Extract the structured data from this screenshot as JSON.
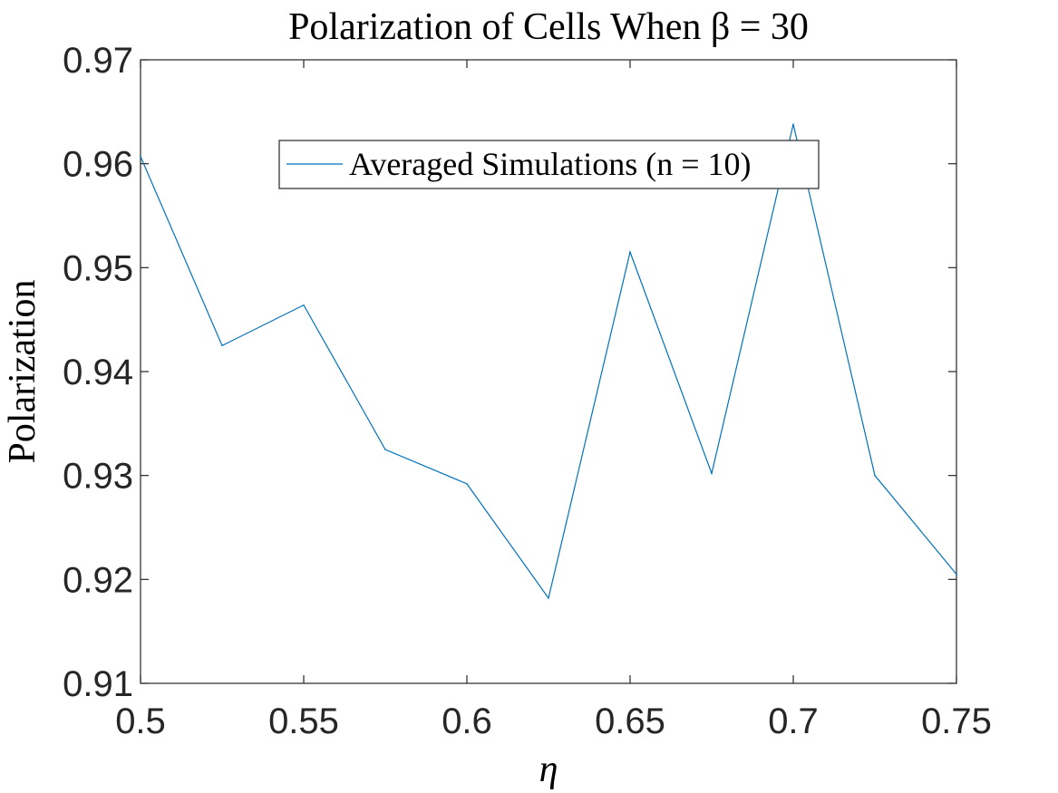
{
  "chart_data": {
    "type": "line",
    "title": "Polarization of Cells When β = 30",
    "xlabel": "η",
    "ylabel": "Polarization",
    "xlim": [
      0.5,
      0.75
    ],
    "ylim": [
      0.91,
      0.97
    ],
    "xticks": [
      "0.5",
      "0.55",
      "0.6",
      "0.65",
      "0.7",
      "0.75"
    ],
    "yticks": [
      "0.91",
      "0.92",
      "0.93",
      "0.94",
      "0.95",
      "0.96",
      "0.97"
    ],
    "grid": false,
    "legend_position": "top-center",
    "series": [
      {
        "name": "Averaged Simulations (n = 10)",
        "color": "#0072bd",
        "x": [
          0.5,
          0.525,
          0.55,
          0.575,
          0.6,
          0.625,
          0.65,
          0.675,
          0.7,
          0.725,
          0.75
        ],
        "y": [
          0.9607,
          0.9425,
          0.9464,
          0.9325,
          0.9292,
          0.9182,
          0.9515,
          0.9302,
          0.9638,
          0.93,
          0.9205
        ]
      }
    ]
  }
}
